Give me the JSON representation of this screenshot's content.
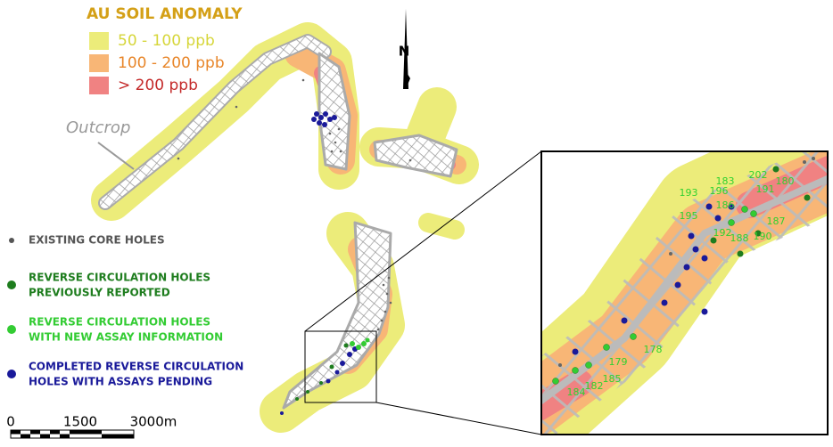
{
  "legend": {
    "title": "AU SOIL ANOMALY",
    "items": [
      {
        "label": "50 - 100 ppb",
        "color": "#ecec7a",
        "text_color": "#d6d63a"
      },
      {
        "label": "100 - 200 ppb",
        "color": "#f8b676",
        "text_color": "#e8862a"
      },
      {
        "label": "> 200 ppb",
        "color": "#f08282",
        "text_color": "#c42a2a"
      }
    ]
  },
  "north": "N",
  "outcrop_label": "Outcrop",
  "holes": [
    {
      "lines": [
        "EXISTING CORE HOLES"
      ],
      "color": "#555555"
    },
    {
      "lines": [
        "REVERSE CIRCULATION HOLES",
        "PREVIOUSLY REPORTED"
      ],
      "color": "#1e7d1e"
    },
    {
      "lines": [
        "REVERSE CIRCULATION HOLES",
        "WITH NEW ASSAY INFORMATION"
      ],
      "color": "#33cc33"
    },
    {
      "lines": [
        "COMPLETED REVERSE CIRCULATION",
        "HOLES WITH ASSAYS PENDING"
      ],
      "color": "#1a1a9a"
    }
  ],
  "scale": {
    "labels": [
      "0",
      "1500",
      "3000m"
    ]
  },
  "inset_labels": [
    "193",
    "183",
    "202",
    "180",
    "196",
    "191",
    "186",
    "187",
    "195",
    "192",
    "188",
    "190",
    "178",
    "179",
    "184",
    "182",
    "185"
  ]
}
